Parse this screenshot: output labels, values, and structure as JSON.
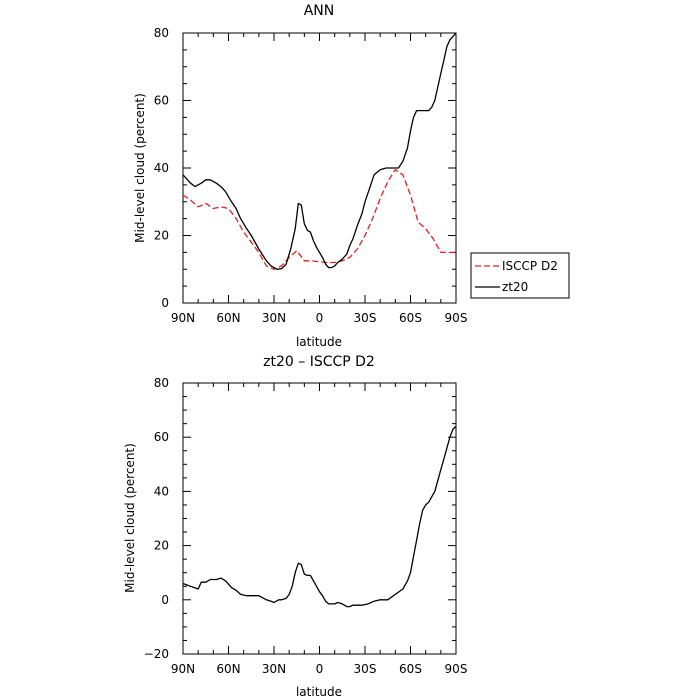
{
  "chart_data": [
    {
      "type": "line",
      "title": "ANN",
      "xlabel": "latitude",
      "ylabel": "Mid-level cloud (percent)",
      "xlim": [
        90,
        -90
      ],
      "ylim": [
        0,
        80
      ],
      "x_ticks": [
        90,
        60,
        30,
        0,
        -30,
        -60,
        -90
      ],
      "x_tick_labels": [
        "90N",
        "60N",
        "30N",
        "0",
        "30S",
        "60S",
        "90S"
      ],
      "y_ticks": [
        0,
        20,
        40,
        60,
        80
      ],
      "y_tick_labels": [
        "0",
        "20",
        "40",
        "60",
        "80"
      ],
      "legend": {
        "placement": "right",
        "entries": [
          {
            "name": "ISCCP D2",
            "color": "#e02020",
            "style": "dashed"
          },
          {
            "name": "zt20",
            "color": "#000000",
            "style": "solid"
          }
        ]
      },
      "series": [
        {
          "name": "ISCCP D2",
          "color": "#e02020",
          "style": "dashed",
          "x": [
            90,
            85,
            80,
            75,
            70,
            65,
            60,
            55,
            50,
            45,
            40,
            35,
            30,
            25,
            20,
            15,
            10,
            5,
            0,
            -5,
            -10,
            -15,
            -20,
            -25,
            -30,
            -35,
            -40,
            -45,
            -50,
            -55,
            -60,
            -65,
            -70,
            -75,
            -80,
            -85,
            -90
          ],
          "values": [
            32,
            30.5,
            28.5,
            29.5,
            28,
            28.5,
            28,
            25,
            21,
            18,
            15,
            11,
            10,
            11,
            13.5,
            15.5,
            12.5,
            12.5,
            12.2,
            12,
            12,
            12.5,
            13.5,
            16,
            20,
            25,
            31,
            36,
            39.5,
            38,
            32,
            24,
            22,
            19,
            15,
            15,
            15
          ]
        },
        {
          "name": "zt20",
          "color": "#000000",
          "style": "solid",
          "x": [
            90,
            85,
            82,
            78,
            75,
            72,
            68,
            65,
            62,
            58,
            55,
            52,
            48,
            45,
            40,
            35,
            32,
            30,
            28,
            25,
            22,
            19,
            16,
            14,
            12,
            10,
            8,
            6,
            4,
            2,
            0,
            -2,
            -4,
            -6,
            -8,
            -10,
            -12,
            -15,
            -18,
            -20,
            -22,
            -25,
            -28,
            -30,
            -33,
            -36,
            -40,
            -44,
            -48,
            -52,
            -55,
            -58,
            -60,
            -62,
            -64,
            -66,
            -68,
            -70,
            -72,
            -74,
            -76,
            -78,
            -80,
            -82,
            -84,
            -86,
            -88,
            -90
          ],
          "values": [
            38,
            35.5,
            34.5,
            35.5,
            36.5,
            36.5,
            35.5,
            34.5,
            33,
            30,
            28,
            25,
            22,
            20,
            16,
            12.5,
            11,
            10.5,
            10,
            10.2,
            11.5,
            16,
            22,
            29.5,
            29,
            23.5,
            21.5,
            21,
            18.5,
            16.5,
            15,
            13.5,
            11.5,
            10.5,
            10.5,
            11,
            12,
            13,
            14.5,
            17,
            19,
            23,
            26.5,
            30,
            34,
            38,
            39.5,
            40,
            40,
            40,
            42,
            46,
            51,
            55,
            57,
            57,
            57,
            57,
            57,
            58,
            60,
            64,
            68,
            72,
            76,
            78,
            79,
            80
          ]
        }
      ]
    },
    {
      "type": "line",
      "title": "zt20 – ISCCP D2",
      "xlabel": "latitude",
      "ylabel": "Mid-level cloud (percent)",
      "xlim": [
        90,
        -90
      ],
      "ylim": [
        -20,
        80
      ],
      "x_ticks": [
        90,
        60,
        30,
        0,
        -30,
        -60,
        -90
      ],
      "x_tick_labels": [
        "90N",
        "60N",
        "30N",
        "0",
        "30S",
        "60S",
        "90S"
      ],
      "y_ticks": [
        -20,
        0,
        20,
        40,
        60,
        80
      ],
      "y_tick_labels": [
        "−20",
        "0",
        "20",
        "40",
        "60",
        "80"
      ],
      "series": [
        {
          "color": "#000000",
          "style": "solid",
          "x": [
            90,
            85,
            80,
            78,
            75,
            72,
            68,
            65,
            62,
            58,
            55,
            52,
            48,
            45,
            40,
            35,
            32,
            30,
            27,
            25,
            22,
            20,
            18,
            16,
            14,
            12,
            10,
            8,
            6,
            4,
            2,
            0,
            -2,
            -4,
            -6,
            -8,
            -10,
            -12,
            -15,
            -18,
            -20,
            -22,
            -25,
            -28,
            -32,
            -36,
            -40,
            -45,
            -50,
            -55,
            -58,
            -60,
            -62,
            -64,
            -66,
            -68,
            -70,
            -72,
            -74,
            -76,
            -78,
            -80,
            -82,
            -84,
            -86,
            -88,
            -90
          ],
          "values": [
            6,
            5,
            4,
            6.5,
            6.5,
            7.5,
            7.5,
            8,
            7,
            4.5,
            3.5,
            2,
            1.5,
            1.5,
            1.5,
            0,
            -0.5,
            -1,
            0,
            0,
            0.5,
            2,
            5,
            10,
            13.5,
            13,
            9.5,
            9,
            9,
            7,
            5,
            3,
            1.5,
            -0.5,
            -1.5,
            -1.5,
            -1.5,
            -1,
            -1.5,
            -2.5,
            -2.5,
            -2,
            -2,
            -2,
            -1.5,
            -0.5,
            0,
            0,
            2,
            4,
            7,
            10,
            16,
            22,
            28,
            33,
            35,
            36,
            38,
            40,
            44,
            48,
            52,
            56,
            60,
            63,
            64
          ]
        }
      ]
    }
  ]
}
